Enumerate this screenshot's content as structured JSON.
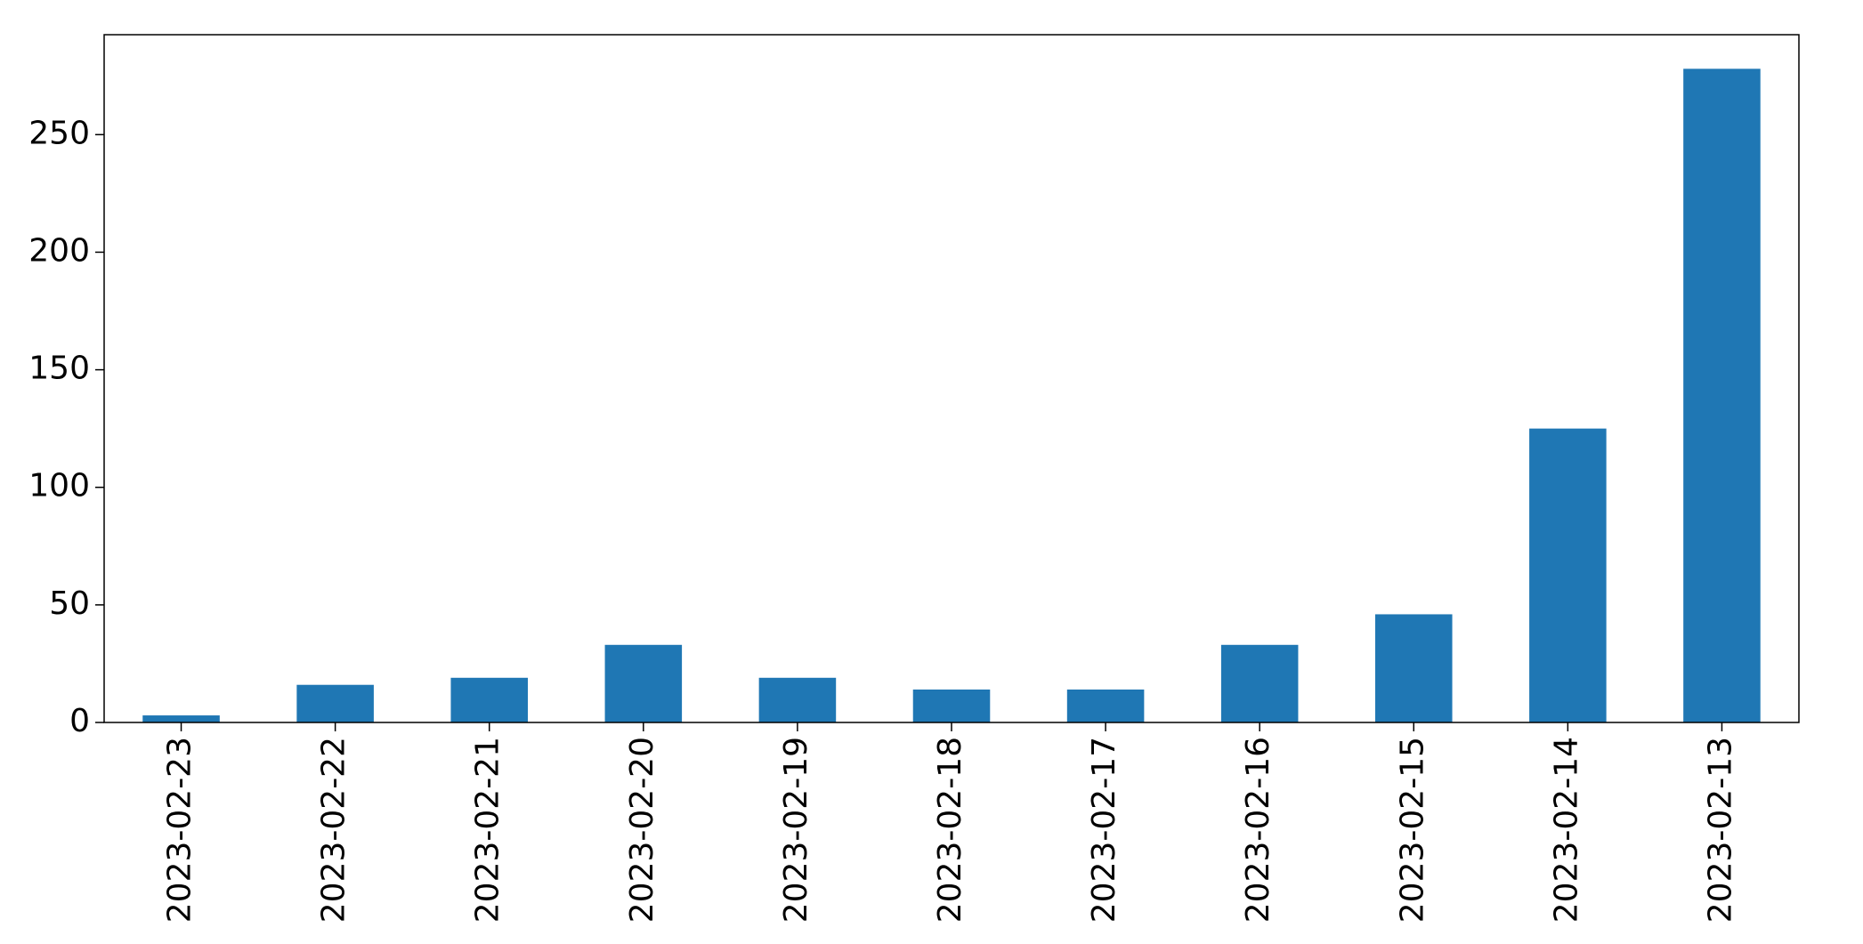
{
  "chart_data": {
    "type": "bar",
    "title": "",
    "xlabel": "",
    "ylabel": "",
    "categories": [
      "2023-02-23",
      "2023-02-22",
      "2023-02-21",
      "2023-02-20",
      "2023-02-19",
      "2023-02-18",
      "2023-02-17",
      "2023-02-16",
      "2023-02-15",
      "2023-02-14",
      "2023-02-13"
    ],
    "values": [
      3,
      16,
      19,
      33,
      19,
      14,
      14,
      33,
      46,
      125,
      278
    ],
    "ylim": [
      0,
      292.5
    ],
    "yticks": [
      0,
      50,
      100,
      150,
      200,
      250
    ],
    "ytick_labels": [
      "0",
      "50",
      "100",
      "150",
      "200",
      "250"
    ],
    "x_tick_rotation": "vertical",
    "grid": false,
    "legend": "none",
    "bar_color": "#1f77b4"
  }
}
